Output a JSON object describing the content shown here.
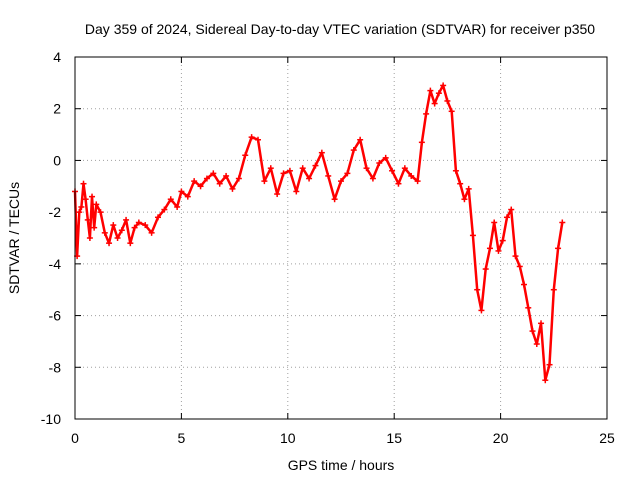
{
  "chart_data": {
    "type": "scatter",
    "title": "Day 359 of 2024, Sidereal Day-to-day VTEC variation (SDTVAR) for receiver p350",
    "xlabel": "GPS time / hours",
    "ylabel": "SDTVAR / TECUs",
    "xlim": [
      0,
      25
    ],
    "ylim": [
      -10,
      4
    ],
    "xticks": [
      0,
      5,
      10,
      15,
      20,
      25
    ],
    "yticks": [
      -10,
      -8,
      -6,
      -4,
      -2,
      0,
      2,
      4
    ],
    "grid": true,
    "marker": "+",
    "color": "#ff0000",
    "series": [
      {
        "name": "SDTVAR",
        "x": [
          0.0,
          0.1,
          0.2,
          0.3,
          0.4,
          0.5,
          0.6,
          0.7,
          0.8,
          0.9,
          1.0,
          1.2,
          1.4,
          1.6,
          1.8,
          2.0,
          2.2,
          2.4,
          2.6,
          2.8,
          3.0,
          3.3,
          3.6,
          3.9,
          4.2,
          4.5,
          4.8,
          5.0,
          5.3,
          5.6,
          5.9,
          6.2,
          6.5,
          6.8,
          7.1,
          7.4,
          7.7,
          8.0,
          8.3,
          8.6,
          8.9,
          9.2,
          9.5,
          9.8,
          10.1,
          10.4,
          10.7,
          11.0,
          11.3,
          11.6,
          11.9,
          12.2,
          12.5,
          12.8,
          13.1,
          13.4,
          13.7,
          14.0,
          14.3,
          14.6,
          14.9,
          15.2,
          15.5,
          15.8,
          16.1,
          16.3,
          16.5,
          16.7,
          16.9,
          17.1,
          17.3,
          17.5,
          17.7,
          17.9,
          18.1,
          18.3,
          18.5,
          18.7,
          18.9,
          19.1,
          19.3,
          19.5,
          19.7,
          19.9,
          20.1,
          20.3,
          20.5,
          20.7,
          20.9,
          21.1,
          21.3,
          21.5,
          21.7,
          21.9,
          22.1,
          22.3,
          22.5,
          22.7,
          22.9
        ],
        "y": [
          -1.2,
          -3.7,
          -2.0,
          -1.8,
          -0.9,
          -1.5,
          -2.3,
          -3.0,
          -1.4,
          -2.6,
          -1.7,
          -2.0,
          -2.8,
          -3.2,
          -2.5,
          -3.0,
          -2.7,
          -2.3,
          -3.2,
          -2.6,
          -2.4,
          -2.5,
          -2.8,
          -2.2,
          -1.9,
          -1.5,
          -1.8,
          -1.2,
          -1.4,
          -0.8,
          -1.0,
          -0.7,
          -0.5,
          -0.9,
          -0.6,
          -1.1,
          -0.7,
          0.2,
          0.9,
          0.8,
          -0.8,
          -0.3,
          -1.3,
          -0.5,
          -0.4,
          -1.2,
          -0.3,
          -0.7,
          -0.2,
          0.3,
          -0.6,
          -1.5,
          -0.8,
          -0.5,
          0.4,
          0.8,
          -0.3,
          -0.7,
          -0.1,
          0.1,
          -0.4,
          -0.9,
          -0.3,
          -0.6,
          -0.8,
          0.7,
          1.8,
          2.7,
          2.2,
          2.6,
          2.9,
          2.3,
          1.9,
          -0.4,
          -0.9,
          -1.5,
          -1.1,
          -2.9,
          -5.0,
          -5.8,
          -4.2,
          -3.4,
          -2.4,
          -3.5,
          -3.1,
          -2.2,
          -1.9,
          -3.7,
          -4.1,
          -4.8,
          -5.7,
          -6.6,
          -7.1,
          -6.3,
          -8.5,
          -7.9,
          -5.0,
          -3.4,
          -2.4
        ]
      }
    ]
  }
}
